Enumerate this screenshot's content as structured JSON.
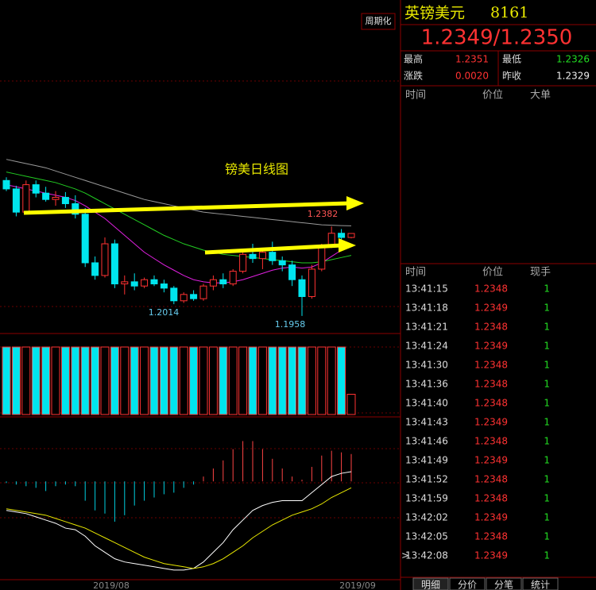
{
  "header": {
    "period_button": "周期化",
    "symbol": "英镑美元",
    "code": "8161",
    "quote": "1.2349/1.2350",
    "stats": [
      {
        "label": "最高",
        "value": "1.2351"
      },
      {
        "label": "最低",
        "value": "1.2326"
      },
      {
        "label": "涨跌",
        "value": "0.0020"
      },
      {
        "label": "昨收",
        "value": "1.2329"
      }
    ]
  },
  "chart_data": [
    {
      "type": "candlestick",
      "title": "镑美日线图",
      "ylim": [
        1.1875,
        1.3455
      ],
      "up_color": "#ff3232",
      "down_color": "#00e5ee",
      "annotations": [
        "1.2382",
        "1.2014",
        "1.1958"
      ],
      "candles": [
        [
          1.26,
          1.2615,
          1.255,
          1.256
        ],
        [
          1.256,
          1.2575,
          1.243,
          1.245
        ],
        [
          1.245,
          1.26,
          1.244,
          1.258
        ],
        [
          1.258,
          1.26,
          1.252,
          1.254
        ],
        [
          1.254,
          1.257,
          1.25,
          1.251
        ],
        [
          1.251,
          1.255,
          1.248,
          1.252
        ],
        [
          1.252,
          1.2545,
          1.247,
          1.249
        ],
        [
          1.249,
          1.253,
          1.242,
          1.244
        ],
        [
          1.244,
          1.247,
          1.219,
          1.221
        ],
        [
          1.221,
          1.224,
          1.213,
          1.215
        ],
        [
          1.215,
          1.233,
          1.214,
          1.23
        ],
        [
          1.23,
          1.232,
          1.209,
          1.211
        ],
        [
          1.211,
          1.215,
          1.206,
          1.212
        ],
        [
          1.212,
          1.216,
          1.208,
          1.21
        ],
        [
          1.21,
          1.214,
          1.209,
          1.213
        ],
        [
          1.213,
          1.215,
          1.21,
          1.211
        ],
        [
          1.211,
          1.213,
          1.207,
          1.209
        ],
        [
          1.209,
          1.21,
          1.2014,
          1.203
        ],
        [
          1.203,
          1.207,
          1.202,
          1.206
        ],
        [
          1.206,
          1.208,
          1.203,
          1.204
        ],
        [
          1.204,
          1.211,
          1.203,
          1.21
        ],
        [
          1.21,
          1.215,
          1.208,
          1.213
        ],
        [
          1.213,
          1.216,
          1.209,
          1.211
        ],
        [
          1.211,
          1.218,
          1.21,
          1.217
        ],
        [
          1.217,
          1.226,
          1.216,
          1.225
        ],
        [
          1.225,
          1.23,
          1.221,
          1.223
        ],
        [
          1.223,
          1.228,
          1.218,
          1.226
        ],
        [
          1.226,
          1.231,
          1.22,
          1.222
        ],
        [
          1.222,
          1.224,
          1.217,
          1.22
        ],
        [
          1.22,
          1.222,
          1.21,
          1.213
        ],
        [
          1.213,
          1.215,
          1.1958,
          1.205
        ],
        [
          1.205,
          1.22,
          1.204,
          1.218
        ],
        [
          1.218,
          1.23,
          1.217,
          1.229
        ],
        [
          1.229,
          1.2382,
          1.228,
          1.235
        ],
        [
          1.235,
          1.237,
          1.231,
          1.233
        ],
        [
          1.233,
          1.2351,
          1.2326,
          1.2349
        ]
      ],
      "series": [
        {
          "color": "#9a9a9a",
          "values": [
            1.27,
            1.269,
            1.268,
            1.267,
            1.266,
            1.2645,
            1.263,
            1.2615,
            1.26,
            1.2585,
            1.257,
            1.2555,
            1.254,
            1.2525,
            1.251,
            1.25,
            1.249,
            1.248,
            1.247,
            1.246,
            1.245,
            1.2445,
            1.244,
            1.2435,
            1.243,
            1.2425,
            1.242,
            1.2415,
            1.241,
            1.2405,
            1.24,
            1.2395,
            1.239,
            1.2388,
            1.2386,
            1.2385
          ]
        },
        {
          "color": "#22cc22",
          "values": [
            1.264,
            1.263,
            1.262,
            1.261,
            1.26,
            1.259,
            1.2575,
            1.256,
            1.254,
            1.2515,
            1.249,
            1.2465,
            1.244,
            1.2415,
            1.239,
            1.2365,
            1.234,
            1.232,
            1.23,
            1.2285,
            1.227,
            1.226,
            1.225,
            1.2245,
            1.224,
            1.2235,
            1.223,
            1.2225,
            1.222,
            1.2215,
            1.221,
            1.221,
            1.2215,
            1.2225,
            1.2235,
            1.2245
          ]
        },
        {
          "color": "#e020e0",
          "values": [
            1.258,
            1.257,
            1.256,
            1.255,
            1.254,
            1.253,
            1.252,
            1.2505,
            1.248,
            1.245,
            1.242,
            1.238,
            1.234,
            1.23,
            1.226,
            1.223,
            1.22,
            1.2175,
            1.215,
            1.213,
            1.212,
            1.2115,
            1.2115,
            1.212,
            1.213,
            1.2145,
            1.216,
            1.2175,
            1.2185,
            1.219,
            1.2185,
            1.219,
            1.221,
            1.224,
            1.227,
            1.23
          ]
        }
      ]
    },
    {
      "type": "volume",
      "ylim": [
        0,
        120
      ],
      "values": [
        100,
        100,
        100,
        100,
        100,
        100,
        100,
        100,
        100,
        100,
        100,
        100,
        100,
        100,
        100,
        100,
        100,
        100,
        100,
        100,
        100,
        100,
        100,
        100,
        100,
        100,
        100,
        100,
        100,
        100,
        100,
        100,
        100,
        100,
        100,
        30
      ]
    },
    {
      "type": "macd",
      "ylim": [
        -0.006,
        0.004
      ],
      "values": [
        -0.0001,
        -0.0002,
        -0.0003,
        -0.0004,
        -0.0006,
        -0.0003,
        -0.0002,
        -0.0003,
        -0.0012,
        -0.0018,
        -0.002,
        -0.0025,
        -0.0021,
        -0.0015,
        -0.0012,
        -0.001,
        -0.0008,
        -0.0007,
        -0.0004,
        -0.0002,
        0.0003,
        0.0008,
        0.0013,
        0.002,
        0.0025,
        0.0025,
        0.002,
        0.0014,
        0.0008,
        0.0003,
        0.0001,
        0.0009,
        0.0016,
        0.0019,
        0.0018,
        0.0017
      ],
      "series": [
        {
          "color": "#ffffff",
          "values": [
            -0.0018,
            -0.0019,
            -0.002,
            -0.0022,
            -0.0024,
            -0.0026,
            -0.0029,
            -0.003,
            -0.0034,
            -0.004,
            -0.0044,
            -0.0048,
            -0.005,
            -0.0051,
            -0.0052,
            -0.0053,
            -0.0054,
            -0.0055,
            -0.0055,
            -0.0054,
            -0.005,
            -0.0044,
            -0.0038,
            -0.003,
            -0.0024,
            -0.0018,
            -0.0015,
            -0.0013,
            -0.0012,
            -0.0012,
            -0.0012,
            -0.0007,
            -0.0002,
            0.0003,
            0.0005,
            0.0006
          ]
        },
        {
          "color": "#e8e800",
          "values": [
            -0.0017,
            -0.0018,
            -0.0019,
            -0.002,
            -0.0021,
            -0.0023,
            -0.0025,
            -0.0027,
            -0.0029,
            -0.0032,
            -0.0035,
            -0.0038,
            -0.0041,
            -0.0044,
            -0.0047,
            -0.0049,
            -0.0051,
            -0.0052,
            -0.0053,
            -0.0054,
            -0.0053,
            -0.0051,
            -0.0048,
            -0.0044,
            -0.004,
            -0.0035,
            -0.0031,
            -0.0027,
            -0.0024,
            -0.0021,
            -0.0019,
            -0.0017,
            -0.0014,
            -0.001,
            -0.0007,
            -0.0004
          ]
        }
      ]
    }
  ],
  "x_labels": [
    "2019/08",
    "2019/09"
  ],
  "big_orders": {
    "columns": [
      "时间",
      "价位",
      "大单"
    ]
  },
  "ticks_table": {
    "columns": [
      "时间",
      "价位",
      "现手"
    ],
    "rows": [
      [
        "13:41:15",
        1.2348,
        1
      ],
      [
        "13:41:18",
        1.2349,
        1
      ],
      [
        "13:41:21",
        1.2348,
        1
      ],
      [
        "13:41:24",
        1.2349,
        1
      ],
      [
        "13:41:30",
        1.2348,
        1
      ],
      [
        "13:41:36",
        1.2348,
        1
      ],
      [
        "13:41:40",
        1.2348,
        1
      ],
      [
        "13:41:43",
        1.2349,
        1
      ],
      [
        "13:41:46",
        1.2348,
        1
      ],
      [
        "13:41:49",
        1.2349,
        1
      ],
      [
        "13:41:52",
        1.2348,
        1
      ],
      [
        "13:41:59",
        1.2348,
        1
      ],
      [
        "13:42:02",
        1.2349,
        1
      ],
      [
        "13:42:05",
        1.2348,
        1
      ],
      [
        "13:42:08",
        1.2349,
        1
      ]
    ]
  },
  "tabs": [
    "明细",
    "分价",
    "分笔",
    "统计"
  ]
}
